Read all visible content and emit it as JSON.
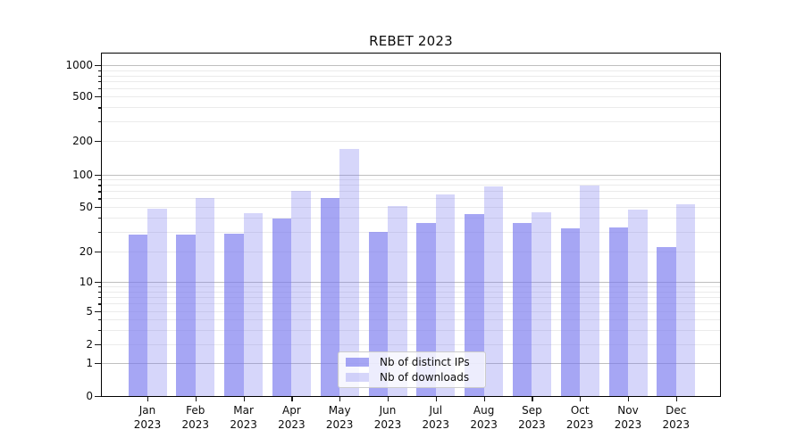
{
  "chart_data": {
    "type": "bar",
    "title": "REBET 2023",
    "categories": [
      "Jan",
      "Feb",
      "Mar",
      "Apr",
      "May",
      "Jun",
      "Jul",
      "Aug",
      "Sep",
      "Oct",
      "Nov",
      "Dec"
    ],
    "category_year": "2023",
    "series": [
      {
        "name": "Nb of distinct IPs",
        "values": [
          28,
          28,
          29,
          39,
          61,
          30,
          36,
          43,
          36,
          32,
          33,
          22
        ],
        "color": "rgba(119,119,238,0.65)"
      },
      {
        "name": "Nb of downloads",
        "values": [
          48,
          60,
          44,
          70,
          170,
          51,
          65,
          78,
          45,
          79,
          47,
          53
        ],
        "color": "rgba(119,119,238,0.30)"
      }
    ],
    "yscale": "symlog",
    "y_tick_values": [
      0,
      1,
      2,
      5,
      10,
      20,
      50,
      100,
      200,
      500,
      1000
    ],
    "y_major_grid_values": [
      1,
      10,
      100,
      1000
    ],
    "legend_position": "lower-center",
    "colors": {
      "bar_base": "#7777ee",
      "major_grid": "#bfbfbf",
      "minor_grid": "#ebebeb",
      "axis": "#000000",
      "text": "#0d0d0d"
    }
  }
}
